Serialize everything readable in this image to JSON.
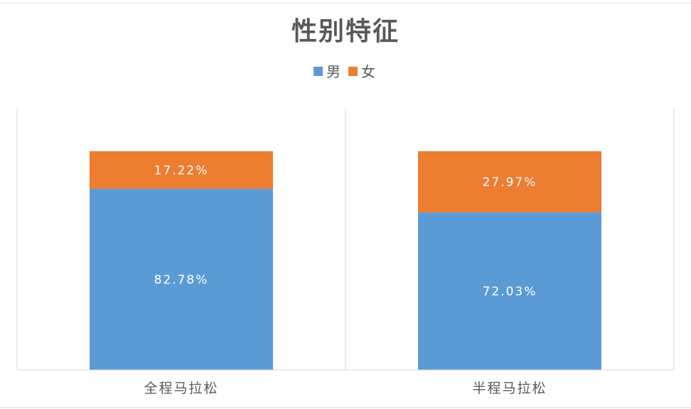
{
  "chart_data": {
    "type": "bar",
    "stacked": true,
    "percent_stacked": true,
    "title": "性别特征",
    "categories": [
      "全程马拉松",
      "半程马拉松"
    ],
    "series": [
      {
        "name": "男",
        "values": [
          82.78,
          72.03
        ],
        "labels": [
          "82.78%",
          "72.03%"
        ],
        "color": "#5B9BD5"
      },
      {
        "name": "女",
        "values": [
          17.22,
          27.97
        ],
        "labels": [
          "17.22%",
          "27.97%"
        ],
        "color": "#ED7D31"
      }
    ],
    "ylim": [
      0,
      100
    ],
    "legend_position": "top",
    "grid": "vertical category separators"
  },
  "colors": {
    "frame": "#D9D9D9",
    "text": "#595959",
    "label": "#FFFFFF"
  }
}
